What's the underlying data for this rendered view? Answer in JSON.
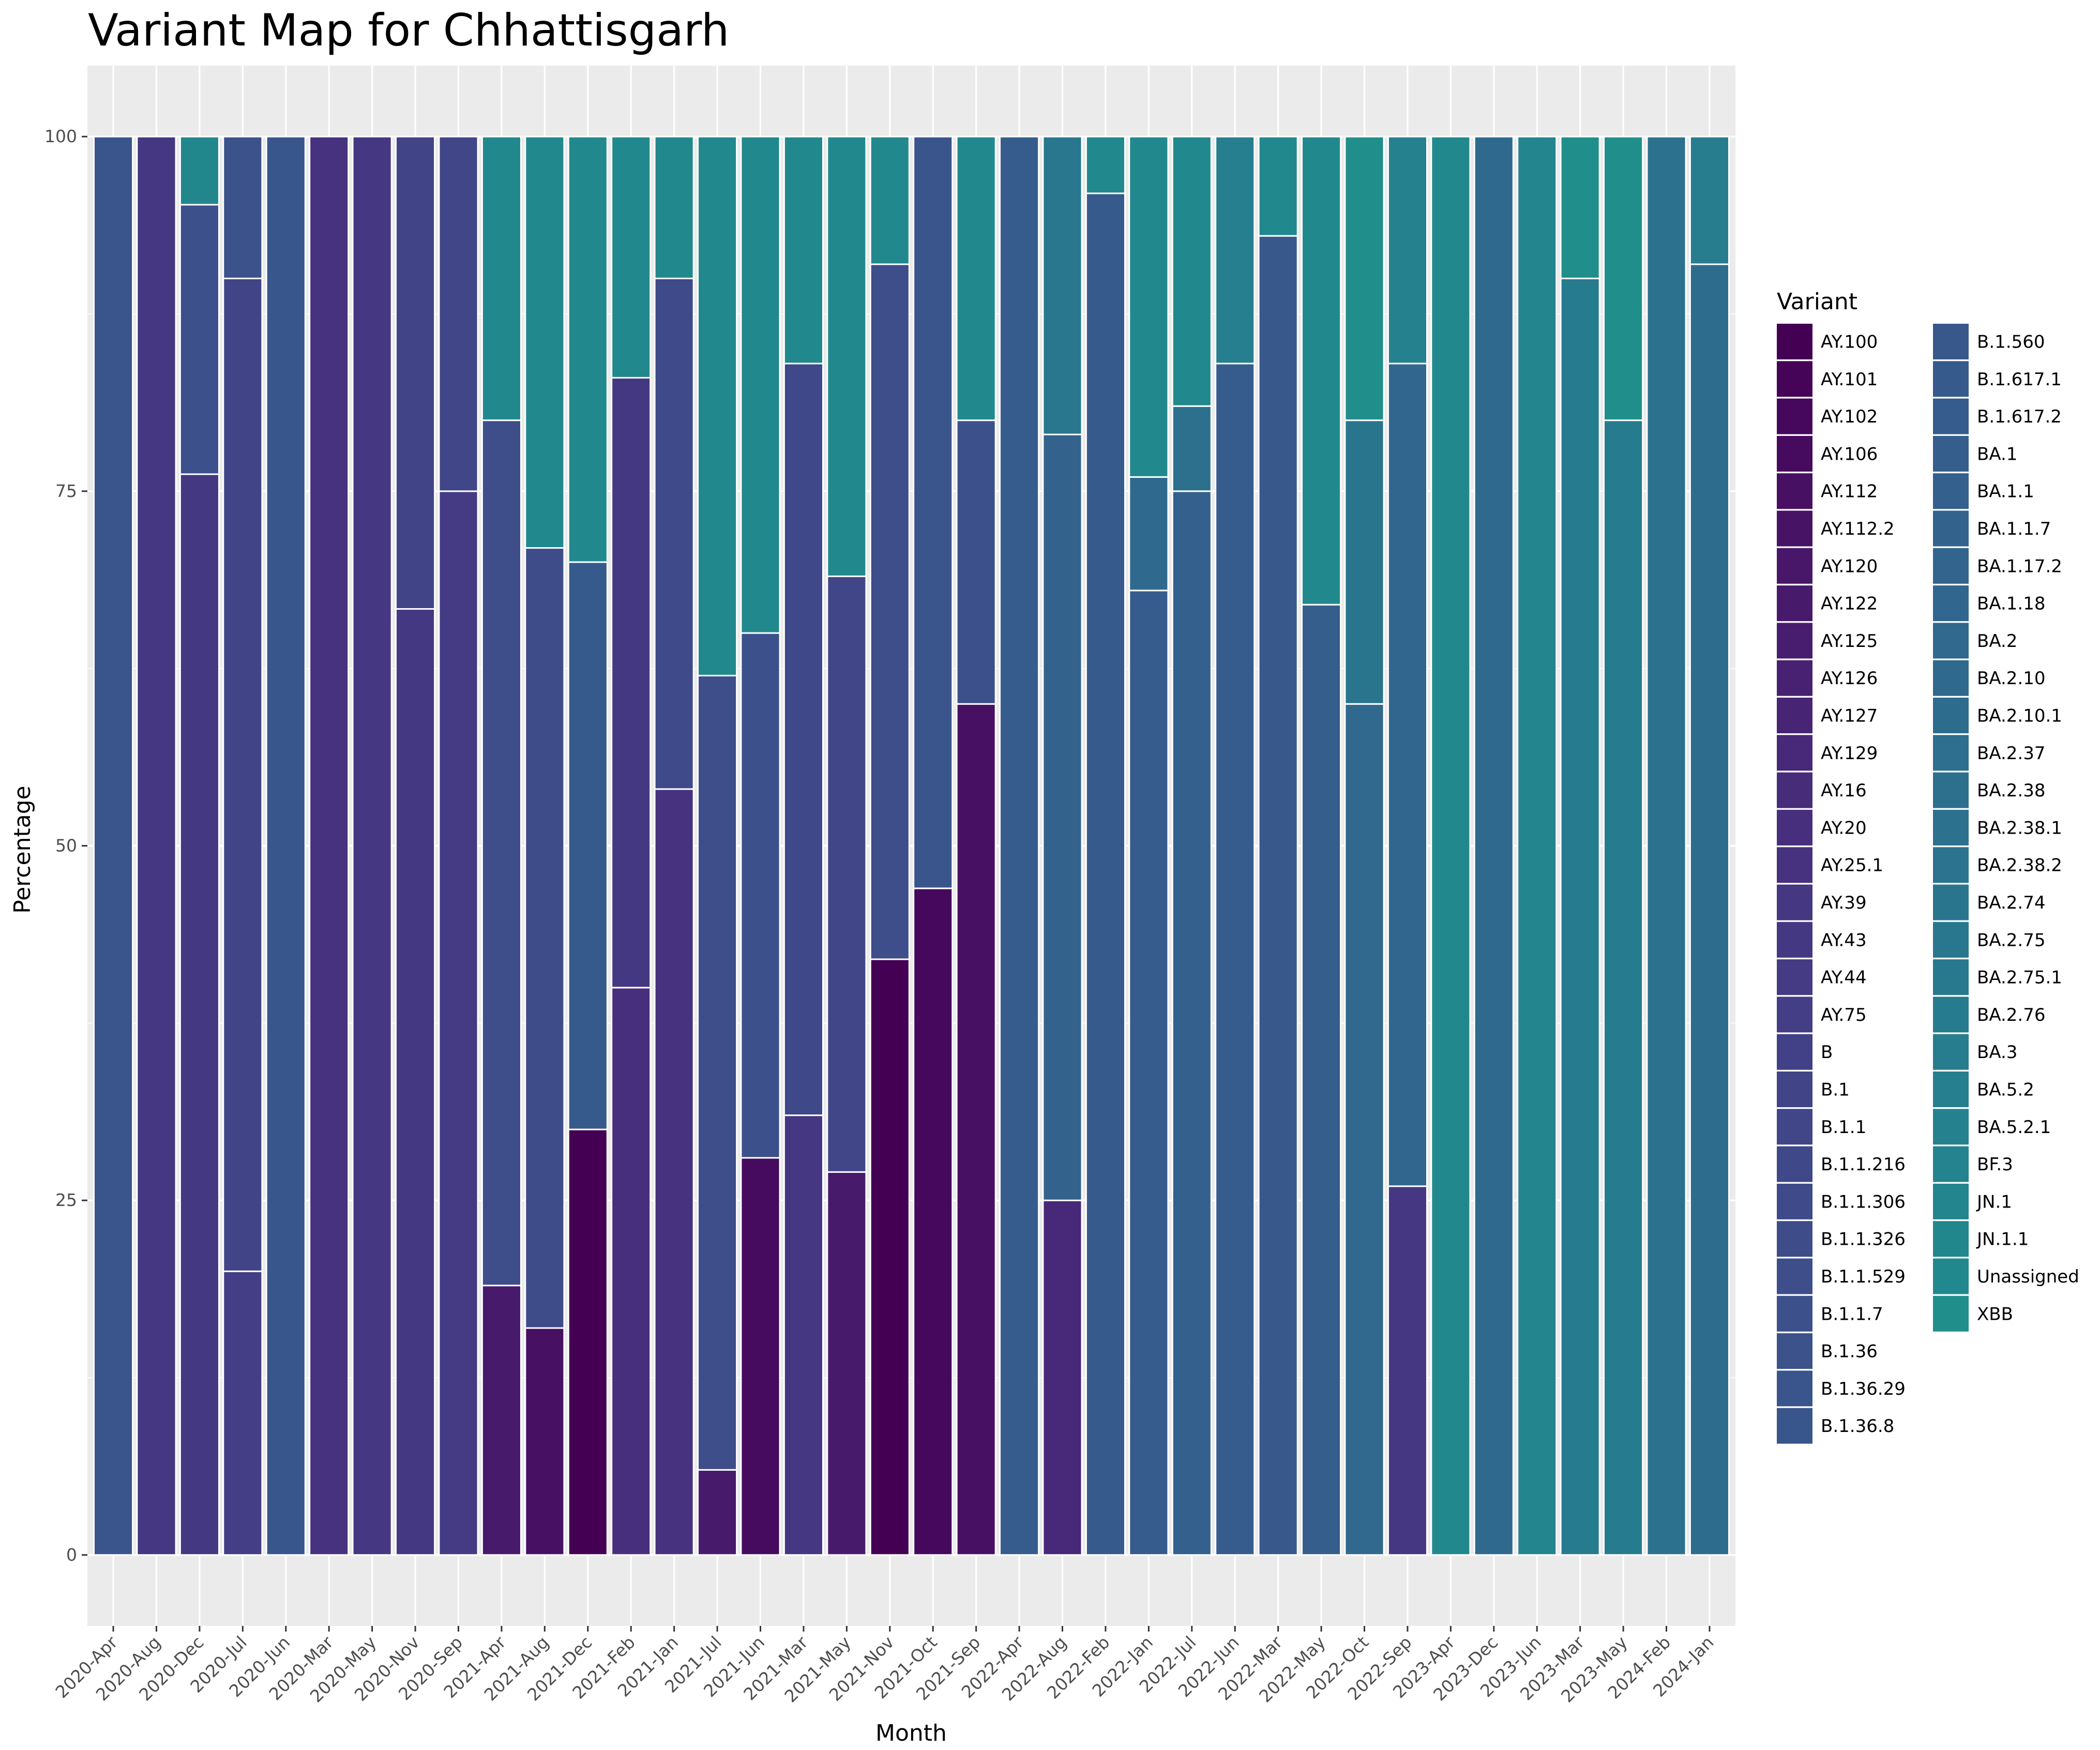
{
  "chart_data": {
    "type": "bar",
    "stacked": true,
    "title": "Variant Map for Chhattisgarh",
    "xlabel": "Month",
    "ylabel": "Percentage",
    "ylim": [
      -5,
      105
    ],
    "yticks": [
      0,
      25,
      50,
      75,
      100
    ],
    "grid": true,
    "legend_title": "Variant",
    "legend_position": "right",
    "categories": [
      "2020-Apr",
      "2020-Aug",
      "2020-Dec",
      "2020-Jul",
      "2020-Jun",
      "2020-Mar",
      "2020-May",
      "2020-Nov",
      "2020-Sep",
      "2021-Apr",
      "2021-Aug",
      "2021-Dec",
      "2021-Feb",
      "2021-Jan",
      "2021-Jul",
      "2021-Jun",
      "2021-Mar",
      "2021-May",
      "2021-Nov",
      "2021-Oct",
      "2021-Sep",
      "2022-Apr",
      "2022-Aug",
      "2022-Feb",
      "2022-Jan",
      "2022-Jul",
      "2022-Jun",
      "2022-Mar",
      "2022-May",
      "2022-Oct",
      "2022-Sep",
      "2023-Apr",
      "2023-Dec",
      "2023-Jun",
      "2023-Mar",
      "2023-May",
      "2024-Feb",
      "2024-Jan"
    ],
    "variants": [
      {
        "name": "AY.100",
        "color": "#440154"
      },
      {
        "name": "AY.101",
        "color": "#450457"
      },
      {
        "name": "AY.102",
        "color": "#46085c"
      },
      {
        "name": "AY.106",
        "color": "#460b5e"
      },
      {
        "name": "AY.112",
        "color": "#471063"
      },
      {
        "name": "AY.112.2",
        "color": "#471365"
      },
      {
        "name": "AY.120",
        "color": "#481769"
      },
      {
        "name": "AY.122",
        "color": "#481a6c"
      },
      {
        "name": "AY.125",
        "color": "#481d6f"
      },
      {
        "name": "AY.126",
        "color": "#482173"
      },
      {
        "name": "AY.127",
        "color": "#482475"
      },
      {
        "name": "AY.129",
        "color": "#482878"
      },
      {
        "name": "AY.16",
        "color": "#472c7a"
      },
      {
        "name": "AY.20",
        "color": "#472f7d"
      },
      {
        "name": "AY.25.1",
        "color": "#46327e"
      },
      {
        "name": "AY.39",
        "color": "#453781"
      },
      {
        "name": "AY.43",
        "color": "#453882"
      },
      {
        "name": "AY.44",
        "color": "#443b84"
      },
      {
        "name": "AY.75",
        "color": "#433e85"
      },
      {
        "name": "B",
        "color": "#424086"
      },
      {
        "name": "B.1",
        "color": "#414487"
      },
      {
        "name": "B.1.1",
        "color": "#404688"
      },
      {
        "name": "B.1.1.216",
        "color": "#3f4889"
      },
      {
        "name": "B.1.1.306",
        "color": "#3e4a89"
      },
      {
        "name": "B.1.1.326",
        "color": "#3e4c8a"
      },
      {
        "name": "B.1.1.529",
        "color": "#3d4e8a"
      },
      {
        "name": "B.1.1.7",
        "color": "#3c508b"
      },
      {
        "name": "B.1.36",
        "color": "#3b528b"
      },
      {
        "name": "B.1.36.29",
        "color": "#3a548c"
      },
      {
        "name": "B.1.36.8",
        "color": "#39568c"
      },
      {
        "name": "B.1.560",
        "color": "#38588c"
      },
      {
        "name": "B.1.617.1",
        "color": "#375a8c"
      },
      {
        "name": "B.1.617.2",
        "color": "#365c8d"
      },
      {
        "name": "BA.1",
        "color": "#355e8d"
      },
      {
        "name": "BA.1.1",
        "color": "#34608d"
      },
      {
        "name": "BA.1.1.7",
        "color": "#33628d"
      },
      {
        "name": "BA.1.17.2",
        "color": "#32648e"
      },
      {
        "name": "BA.1.18",
        "color": "#31668e"
      },
      {
        "name": "BA.2",
        "color": "#30688e"
      },
      {
        "name": "BA.2.10",
        "color": "#2f6a8e"
      },
      {
        "name": "BA.2.10.1",
        "color": "#2e6c8e"
      },
      {
        "name": "BA.2.37",
        "color": "#2e6e8e"
      },
      {
        "name": "BA.2.38",
        "color": "#2d708e"
      },
      {
        "name": "BA.2.38.1",
        "color": "#2c718e"
      },
      {
        "name": "BA.2.38.2",
        "color": "#2b738e"
      },
      {
        "name": "BA.2.74",
        "color": "#2a758e"
      },
      {
        "name": "BA.2.75",
        "color": "#29778e"
      },
      {
        "name": "BA.2.75.1",
        "color": "#28798e"
      },
      {
        "name": "BA.2.76",
        "color": "#277b8e"
      },
      {
        "name": "BA.3",
        "color": "#277d8e"
      },
      {
        "name": "BA.5.2",
        "color": "#267f8e"
      },
      {
        "name": "BA.5.2.1",
        "color": "#25818e"
      },
      {
        "name": "BF.3",
        "color": "#24838e"
      },
      {
        "name": "JN.1",
        "color": "#23858e"
      },
      {
        "name": "JN.1.1",
        "color": "#22878d"
      },
      {
        "name": "Unassigned",
        "color": "#21898d"
      },
      {
        "name": "XBB",
        "color": "#208f8c"
      }
    ],
    "bars": [
      {
        "segments": [
          {
            "v": "B.1.36.29",
            "y": 100
          }
        ]
      },
      {
        "segments": [
          {
            "v": "AY.39",
            "y": 100
          }
        ]
      },
      {
        "segments": [
          {
            "v": "AY.43",
            "y": 76.2
          },
          {
            "v": "B.1.1.7",
            "y": 19
          },
          {
            "v": "JN.1.1",
            "y": 4.8
          }
        ]
      },
      {
        "segments": [
          {
            "v": "AY.75",
            "y": 20
          },
          {
            "v": "B.1",
            "y": 70
          },
          {
            "v": "B.1.36",
            "y": 10
          }
        ]
      },
      {
        "segments": [
          {
            "v": "B.1.36.8",
            "y": 100
          }
        ]
      },
      {
        "segments": [
          {
            "v": "AY.25.1",
            "y": 100
          }
        ]
      },
      {
        "segments": [
          {
            "v": "AY.39",
            "y": 100
          }
        ]
      },
      {
        "segments": [
          {
            "v": "AY.43",
            "y": 66.7
          },
          {
            "v": "B.1",
            "y": 33.3
          }
        ]
      },
      {
        "segments": [
          {
            "v": "AY.44",
            "y": 75
          },
          {
            "v": "B.1.1",
            "y": 25
          }
        ]
      },
      {
        "segments": [
          {
            "v": "AY.122",
            "y": 19
          },
          {
            "v": "B.1.1.529",
            "y": 61
          },
          {
            "v": "Unassigned",
            "y": 20
          }
        ]
      },
      {
        "segments": [
          {
            "v": "AY.112",
            "y": 16
          },
          {
            "v": "B.1.1.326",
            "y": 55
          },
          {
            "v": "Unassigned",
            "y": 29
          }
        ]
      },
      {
        "segments": [
          {
            "v": "AY.100",
            "y": 30
          },
          {
            "v": "B.1.617.1",
            "y": 40
          },
          {
            "v": "Unassigned",
            "y": 30
          }
        ]
      },
      {
        "segments": [
          {
            "v": "AY.20",
            "y": 40
          },
          {
            "v": "AY.43",
            "y": 43
          },
          {
            "v": "Unassigned",
            "y": 17
          }
        ]
      },
      {
        "segments": [
          {
            "v": "AY.25.1",
            "y": 54
          },
          {
            "v": "B.1.1.306",
            "y": 36
          },
          {
            "v": "Unassigned",
            "y": 10
          }
        ]
      },
      {
        "segments": [
          {
            "v": "AY.122",
            "y": 6
          },
          {
            "v": "B.1.1.529",
            "y": 56
          },
          {
            "v": "Unassigned",
            "y": 38
          }
        ]
      },
      {
        "segments": [
          {
            "v": "AY.106",
            "y": 28
          },
          {
            "v": "B.1.1.7",
            "y": 37
          },
          {
            "v": "Unassigned",
            "y": 35
          }
        ]
      },
      {
        "segments": [
          {
            "v": "AY.39",
            "y": 31
          },
          {
            "v": "B.1.1.216",
            "y": 53
          },
          {
            "v": "Unassigned",
            "y": 16
          }
        ]
      },
      {
        "segments": [
          {
            "v": "AY.122",
            "y": 27
          },
          {
            "v": "B.1.1",
            "y": 42
          },
          {
            "v": "Unassigned",
            "y": 31
          }
        ]
      },
      {
        "segments": [
          {
            "v": "AY.100",
            "y": 42
          },
          {
            "v": "B.1.1.529",
            "y": 49
          },
          {
            "v": "Unassigned",
            "y": 9
          }
        ]
      },
      {
        "segments": [
          {
            "v": "AY.102",
            "y": 47
          },
          {
            "v": "B.1.36.29",
            "y": 53
          }
        ]
      },
      {
        "segments": [
          {
            "v": "AY.112",
            "y": 60
          },
          {
            "v": "B.1.1.7",
            "y": 20
          },
          {
            "v": "Unassigned",
            "y": 20
          }
        ]
      },
      {
        "segments": [
          {
            "v": "B.1.617.2",
            "y": 100
          }
        ]
      },
      {
        "segments": [
          {
            "v": "AY.129",
            "y": 25
          },
          {
            "v": "BA.1.1.7",
            "y": 54
          },
          {
            "v": "BA.2.75",
            "y": 21
          }
        ]
      },
      {
        "segments": [
          {
            "v": "B.1.617.1",
            "y": 96
          },
          {
            "v": "Unassigned",
            "y": 4
          }
        ]
      },
      {
        "segments": [
          {
            "v": "B.1.617.2",
            "y": 68
          },
          {
            "v": "BA.2.10",
            "y": 8
          },
          {
            "v": "Unassigned",
            "y": 24
          }
        ]
      },
      {
        "segments": [
          {
            "v": "BA.1.1",
            "y": 75
          },
          {
            "v": "BA.2.38",
            "y": 6
          },
          {
            "v": "Unassigned",
            "y": 19
          }
        ]
      },
      {
        "segments": [
          {
            "v": "B.1.617.2",
            "y": 84
          },
          {
            "v": "BA.5.2",
            "y": 16
          }
        ]
      },
      {
        "segments": [
          {
            "v": "B.1.560",
            "y": 93
          },
          {
            "v": "Unassigned",
            "y": 7
          }
        ]
      },
      {
        "segments": [
          {
            "v": "BA.1",
            "y": 67
          },
          {
            "v": "Unassigned",
            "y": 33
          }
        ]
      },
      {
        "segments": [
          {
            "v": "BA.2",
            "y": 60
          },
          {
            "v": "BA.2.74",
            "y": 20
          },
          {
            "v": "XBB",
            "y": 20
          }
        ]
      },
      {
        "segments": [
          {
            "v": "AY.39",
            "y": 26
          },
          {
            "v": "BA.1.18",
            "y": 58
          },
          {
            "v": "BA.5.2.1",
            "y": 16
          }
        ]
      },
      {
        "segments": [
          {
            "v": "Unassigned",
            "y": 100
          }
        ]
      },
      {
        "segments": [
          {
            "v": "BA.2.10",
            "y": 100
          }
        ]
      },
      {
        "segments": [
          {
            "v": "JN.1",
            "y": 100
          }
        ]
      },
      {
        "segments": [
          {
            "v": "BA.2.76",
            "y": 90
          },
          {
            "v": "XBB",
            "y": 10
          }
        ]
      },
      {
        "segments": [
          {
            "v": "BA.2.76",
            "y": 80
          },
          {
            "v": "XBB",
            "y": 20
          }
        ]
      },
      {
        "segments": [
          {
            "v": "BA.2.38.1",
            "y": 100
          }
        ]
      },
      {
        "segments": [
          {
            "v": "BA.2.10.1",
            "y": 91
          },
          {
            "v": "BA.3",
            "y": 9
          }
        ]
      }
    ]
  }
}
